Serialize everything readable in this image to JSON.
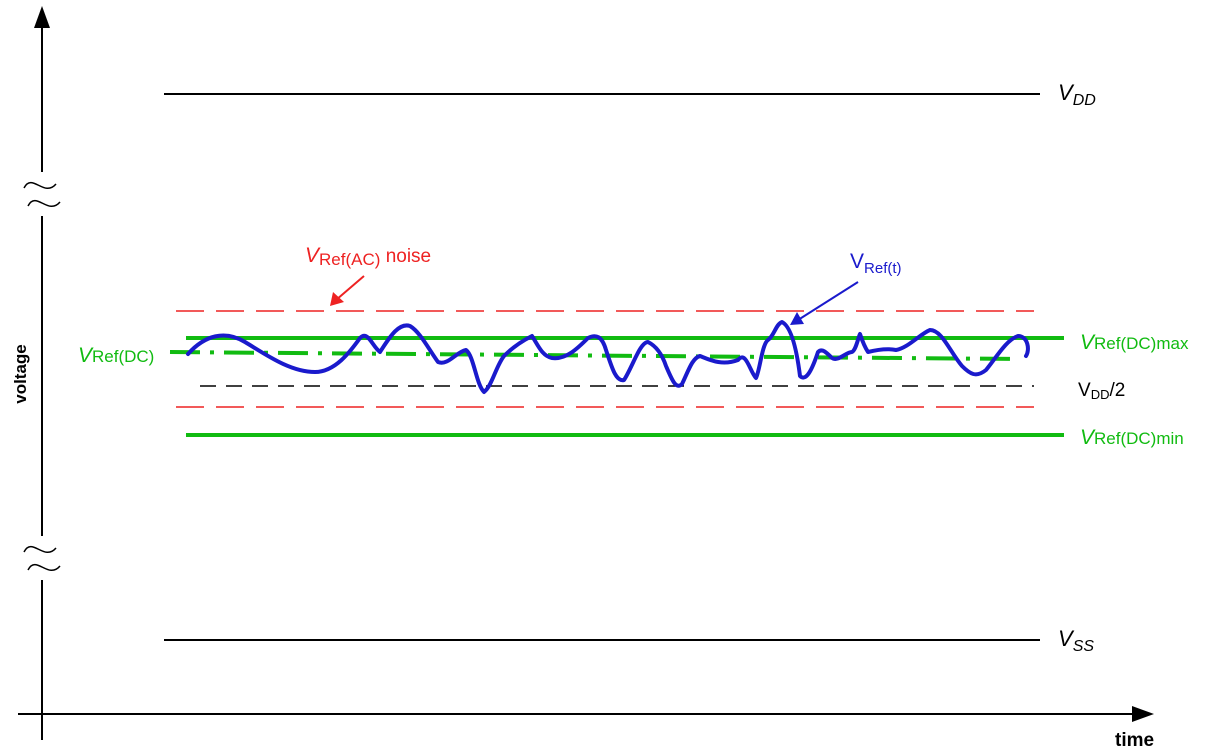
{
  "axes": {
    "y_label": "voltage",
    "x_label": "time"
  },
  "rails": {
    "vdd": {
      "v": "V",
      "sub": "DD"
    },
    "vss": {
      "v": "V",
      "sub": "SS"
    }
  },
  "levels": {
    "vref_dc": {
      "v": "V",
      "sub": "Ref(DC)"
    },
    "vref_dc_max": {
      "v": "V",
      "sub": "Ref(DC)max"
    },
    "vref_dc_min": {
      "v": "V",
      "sub": "Ref(DC)min"
    },
    "vdd_half": {
      "v": "V",
      "sub": "DD",
      "suffix": "/2"
    }
  },
  "callouts": {
    "vref_ac_noise": {
      "v": "V",
      "sub": "Ref(AC)",
      "suffix": " noise"
    },
    "vref_t": {
      "v": "V",
      "sub": "Ref(t)"
    }
  },
  "colors": {
    "axis": "#000000",
    "green": "#11bb11",
    "red": "#ee2222",
    "blue": "#1a1acc"
  }
}
